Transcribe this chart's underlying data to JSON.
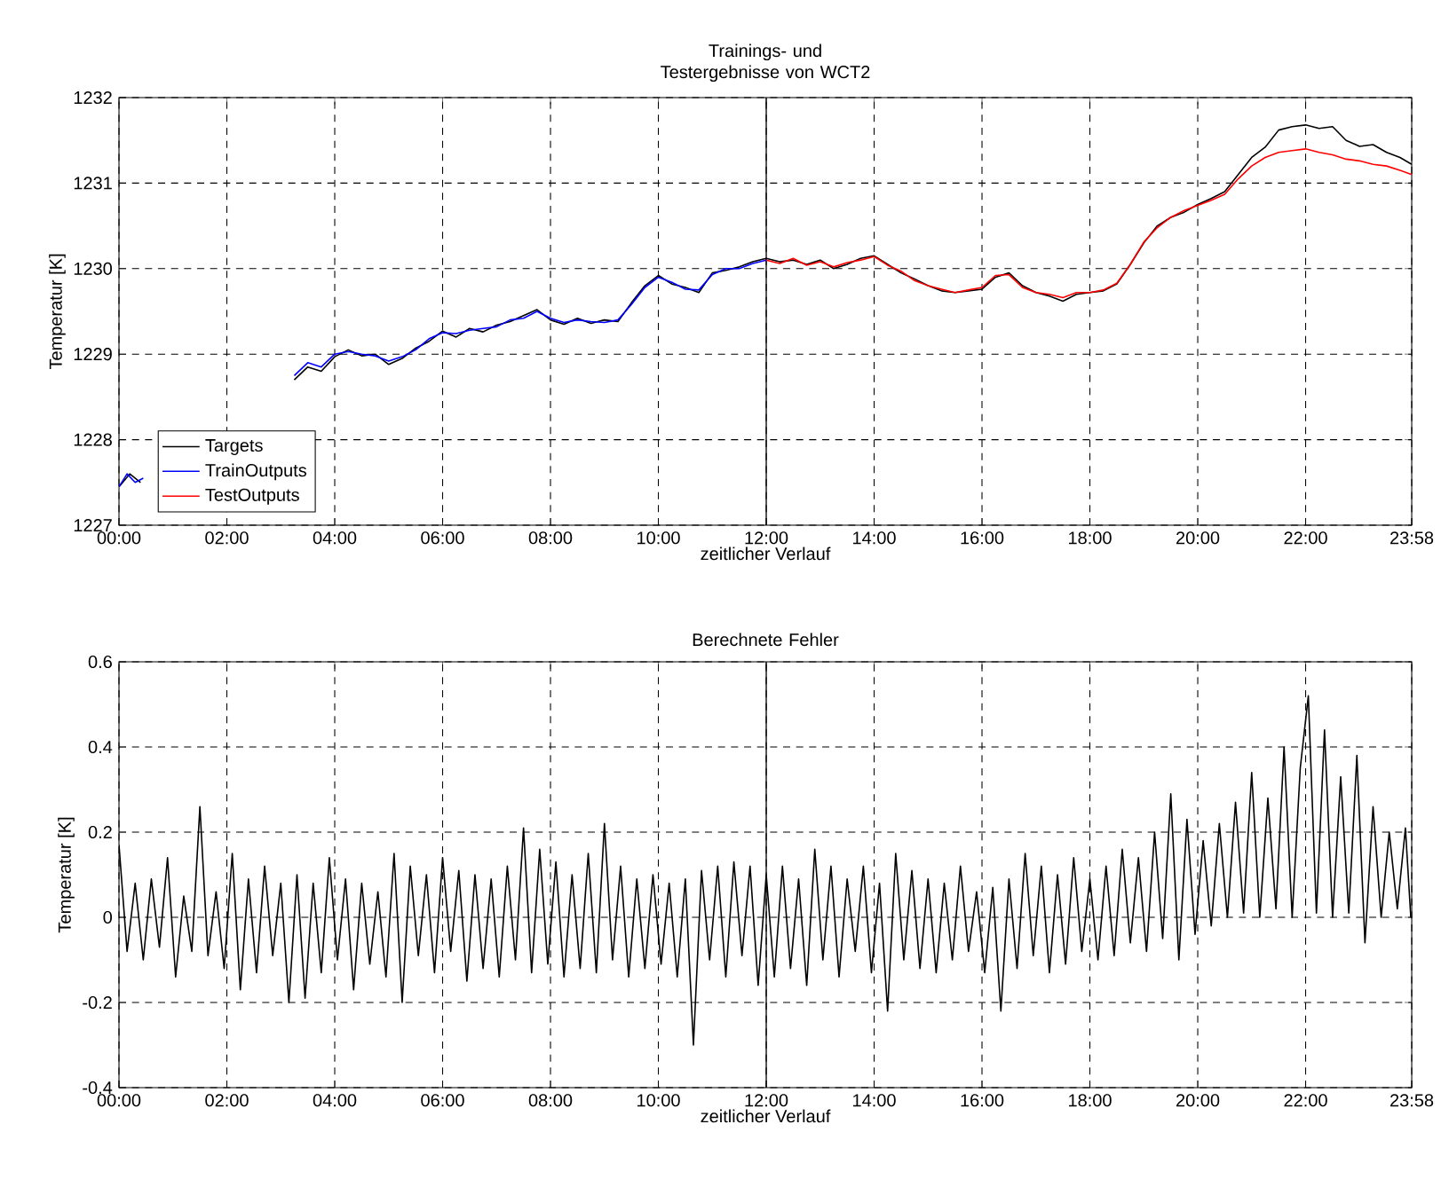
{
  "chart_data": [
    {
      "type": "line",
      "title": "Trainings- und Testergebnisse von WCT2",
      "xlabel": "zeitlicher Verlauf",
      "ylabel": "Temperatur [K]",
      "xlim": [
        0,
        23.967
      ],
      "xticks": [
        {
          "value": 0,
          "label": "00:00"
        },
        {
          "value": 2,
          "label": "02:00"
        },
        {
          "value": 4,
          "label": "04:00"
        },
        {
          "value": 6,
          "label": "06:00"
        },
        {
          "value": 8,
          "label": "08:00"
        },
        {
          "value": 10,
          "label": "10:00"
        },
        {
          "value": 12,
          "label": "12:00"
        },
        {
          "value": 14,
          "label": "14:00"
        },
        {
          "value": 16,
          "label": "16:00"
        },
        {
          "value": 18,
          "label": "18:00"
        },
        {
          "value": 20,
          "label": "20:00"
        },
        {
          "value": 22,
          "label": "22:00"
        },
        {
          "value": 23.967,
          "label": "23:58"
        }
      ],
      "ylim": [
        1227,
        1232
      ],
      "yticks": [
        1227,
        1228,
        1229,
        1230,
        1231,
        1232
      ],
      "grid": true,
      "legend": "bottom left",
      "ref_lines": [
        {
          "axis": "x",
          "value": 12,
          "color": "#000000"
        }
      ],
      "series": [
        {
          "name": "Targets",
          "color": "#000000",
          "x": [
            0,
            0.2,
            0.4,
            1.5,
            3.25,
            3.5,
            3.75,
            4.0,
            4.25,
            4.5,
            4.75,
            5.0,
            5.25,
            5.5,
            5.75,
            6.0,
            6.25,
            6.5,
            6.75,
            7.0,
            7.25,
            7.5,
            7.75,
            8.0,
            8.25,
            8.5,
            8.75,
            9.0,
            9.25,
            9.5,
            9.75,
            10.0,
            10.25,
            10.5,
            10.75,
            11.0,
            11.25,
            11.5,
            11.75,
            12.0,
            12.25,
            12.5,
            12.75,
            13.0,
            13.25,
            13.5,
            13.75,
            14.0,
            14.25,
            14.5,
            14.75,
            15.0,
            15.25,
            15.5,
            15.75,
            16.0,
            16.25,
            16.5,
            16.75,
            17.0,
            17.25,
            17.5,
            17.75,
            18.0,
            18.25,
            18.5,
            18.75,
            19.0,
            19.25,
            19.5,
            19.75,
            20.0,
            20.25,
            20.5,
            20.75,
            21.0,
            21.25,
            21.5,
            21.75,
            22.0,
            22.25,
            22.5,
            22.75,
            23.0,
            23.25,
            23.5,
            23.75,
            23.967
          ],
          "values": [
            1227.45,
            1227.6,
            1227.5,
            null,
            1228.7,
            1228.85,
            1228.8,
            1228.97,
            1229.05,
            1228.98,
            1229.0,
            1228.88,
            1228.95,
            1229.07,
            1229.15,
            1229.27,
            1229.2,
            1229.3,
            1229.26,
            1229.34,
            1229.38,
            1229.45,
            1229.52,
            1229.4,
            1229.35,
            1229.42,
            1229.36,
            1229.4,
            1229.38,
            1229.6,
            1229.8,
            1229.92,
            1229.82,
            1229.78,
            1229.72,
            1229.95,
            1229.98,
            1230.02,
            1230.08,
            1230.12,
            1230.08,
            1230.1,
            1230.05,
            1230.1,
            1230.0,
            1230.05,
            1230.12,
            1230.15,
            1230.05,
            1229.95,
            1229.88,
            1229.8,
            1229.74,
            1229.72,
            1229.74,
            1229.76,
            1229.9,
            1229.95,
            1229.8,
            1229.72,
            1229.68,
            1229.62,
            1229.7,
            1229.72,
            1229.74,
            1229.82,
            1230.05,
            1230.3,
            1230.5,
            1230.6,
            1230.66,
            1230.75,
            1230.82,
            1230.9,
            1231.1,
            1231.3,
            1231.42,
            1231.62,
            1231.66,
            1231.68,
            1231.64,
            1231.66,
            1231.5,
            1231.43,
            1231.45,
            1231.36,
            1231.3,
            1231.22
          ]
        },
        {
          "name": "TrainOutputs",
          "color": "#0000ff",
          "x": [
            0,
            0.15,
            0.3,
            0.45,
            1.5,
            3.25,
            3.5,
            3.75,
            4.0,
            4.25,
            4.5,
            4.75,
            5.0,
            5.25,
            5.5,
            5.75,
            6.0,
            6.25,
            6.5,
            6.75,
            7.0,
            7.25,
            7.5,
            7.75,
            8.0,
            8.25,
            8.5,
            8.75,
            9.0,
            9.25,
            9.5,
            9.75,
            10.0,
            10.25,
            10.5,
            10.75,
            11.0,
            11.25,
            11.5,
            11.75,
            12.0
          ],
          "values": [
            1227.45,
            1227.6,
            1227.5,
            1227.55,
            null,
            1228.75,
            1228.9,
            1228.85,
            1229.0,
            1229.03,
            1229.0,
            1228.98,
            1228.92,
            1228.97,
            1229.05,
            1229.18,
            1229.25,
            1229.24,
            1229.28,
            1229.3,
            1229.32,
            1229.4,
            1229.42,
            1229.5,
            1229.42,
            1229.37,
            1229.4,
            1229.38,
            1229.37,
            1229.4,
            1229.58,
            1229.78,
            1229.9,
            1229.84,
            1229.76,
            1229.75,
            1229.93,
            1230.0,
            1230.0,
            1230.06,
            1230.1
          ]
        },
        {
          "name": "TestOutputs",
          "color": "#ff0000",
          "x": [
            12.0,
            12.25,
            12.5,
            12.75,
            13.0,
            13.25,
            13.5,
            13.75,
            14.0,
            14.25,
            14.5,
            14.75,
            15.0,
            15.25,
            15.5,
            15.75,
            16.0,
            16.25,
            16.5,
            16.75,
            17.0,
            17.25,
            17.5,
            17.75,
            18.0,
            18.25,
            18.5,
            18.75,
            19.0,
            19.25,
            19.5,
            19.75,
            20.0,
            20.25,
            20.5,
            20.75,
            21.0,
            21.25,
            21.5,
            21.75,
            22.0,
            22.25,
            22.5,
            22.75,
            23.0,
            23.25,
            23.5,
            23.75,
            23.967
          ],
          "values": [
            1230.1,
            1230.06,
            1230.12,
            1230.04,
            1230.08,
            1230.02,
            1230.07,
            1230.1,
            1230.14,
            1230.04,
            1229.97,
            1229.86,
            1229.8,
            1229.76,
            1229.72,
            1229.75,
            1229.78,
            1229.92,
            1229.93,
            1229.78,
            1229.72,
            1229.7,
            1229.66,
            1229.72,
            1229.72,
            1229.75,
            1229.83,
            1230.05,
            1230.31,
            1230.48,
            1230.6,
            1230.68,
            1230.74,
            1230.8,
            1230.87,
            1231.05,
            1231.2,
            1231.3,
            1231.36,
            1231.38,
            1231.4,
            1231.36,
            1231.33,
            1231.28,
            1231.26,
            1231.22,
            1231.2,
            1231.15,
            1231.1
          ]
        }
      ]
    },
    {
      "type": "line",
      "title": "Berechnete Fehler",
      "xlabel": "zeitlicher Verlauf",
      "ylabel": "Temperatur [K]",
      "xlim": [
        0,
        23.967
      ],
      "xticks": [
        {
          "value": 0,
          "label": "00:00"
        },
        {
          "value": 2,
          "label": "02:00"
        },
        {
          "value": 4,
          "label": "04:00"
        },
        {
          "value": 6,
          "label": "06:00"
        },
        {
          "value": 8,
          "label": "08:00"
        },
        {
          "value": 10,
          "label": "10:00"
        },
        {
          "value": 12,
          "label": "12:00"
        },
        {
          "value": 14,
          "label": "14:00"
        },
        {
          "value": 16,
          "label": "16:00"
        },
        {
          "value": 18,
          "label": "18:00"
        },
        {
          "value": 20,
          "label": "20:00"
        },
        {
          "value": 22,
          "label": "22:00"
        },
        {
          "value": 23.967,
          "label": "23:58"
        }
      ],
      "ylim": [
        -0.4,
        0.6
      ],
      "yticks": [
        -0.4,
        -0.2,
        0,
        0.2,
        0.4,
        0.6
      ],
      "grid": true,
      "ref_lines": [
        {
          "axis": "x",
          "value": 12,
          "color": "#000000"
        }
      ],
      "series": [
        {
          "color": "#000000",
          "x": [
            0.0,
            0.15,
            0.3,
            0.45,
            0.6,
            0.75,
            0.9,
            1.05,
            1.2,
            1.35,
            1.5,
            1.65,
            1.8,
            1.95,
            2.1,
            2.25,
            2.4,
            2.55,
            2.7,
            2.85,
            3.0,
            3.15,
            3.3,
            3.45,
            3.6,
            3.75,
            3.9,
            4.05,
            4.2,
            4.35,
            4.5,
            4.65,
            4.8,
            4.95,
            5.1,
            5.25,
            5.4,
            5.55,
            5.7,
            5.85,
            6.0,
            6.15,
            6.3,
            6.45,
            6.6,
            6.75,
            6.9,
            7.05,
            7.2,
            7.35,
            7.5,
            7.65,
            7.8,
            7.95,
            8.1,
            8.25,
            8.4,
            8.55,
            8.7,
            8.85,
            9.0,
            9.15,
            9.3,
            9.45,
            9.6,
            9.75,
            9.9,
            10.05,
            10.2,
            10.35,
            10.5,
            10.65,
            10.8,
            10.95,
            11.1,
            11.25,
            11.4,
            11.55,
            11.7,
            11.85,
            12.0,
            12.15,
            12.3,
            12.45,
            12.6,
            12.75,
            12.9,
            13.05,
            13.2,
            13.35,
            13.5,
            13.65,
            13.8,
            13.95,
            14.1,
            14.25,
            14.4,
            14.55,
            14.7,
            14.85,
            15.0,
            15.15,
            15.3,
            15.45,
            15.6,
            15.75,
            15.9,
            16.05,
            16.2,
            16.35,
            16.5,
            16.65,
            16.8,
            16.95,
            17.1,
            17.25,
            17.4,
            17.55,
            17.7,
            17.85,
            18.0,
            18.15,
            18.3,
            18.45,
            18.6,
            18.75,
            18.9,
            19.05,
            19.2,
            19.35,
            19.5,
            19.65,
            19.8,
            19.95,
            20.1,
            20.25,
            20.4,
            20.55,
            20.7,
            20.85,
            21.0,
            21.15,
            21.3,
            21.45,
            21.6,
            21.75,
            21.9,
            22.05,
            22.2,
            22.35,
            22.5,
            22.65,
            22.8,
            22.95,
            23.1,
            23.25,
            23.4,
            23.55,
            23.7,
            23.85,
            23.95
          ],
          "values": [
            0.17,
            -0.08,
            0.08,
            -0.1,
            0.09,
            -0.07,
            0.14,
            -0.14,
            0.05,
            -0.08,
            0.26,
            -0.09,
            0.06,
            -0.12,
            0.15,
            -0.17,
            0.09,
            -0.13,
            0.12,
            -0.09,
            0.08,
            -0.2,
            0.1,
            -0.19,
            0.08,
            -0.13,
            0.14,
            -0.1,
            0.09,
            -0.17,
            0.08,
            -0.11,
            0.06,
            -0.14,
            0.15,
            -0.2,
            0.12,
            -0.09,
            0.1,
            -0.13,
            0.14,
            -0.08,
            0.11,
            -0.15,
            0.1,
            -0.12,
            0.09,
            -0.14,
            0.12,
            -0.1,
            0.21,
            -0.13,
            0.16,
            -0.11,
            0.13,
            -0.14,
            0.1,
            -0.12,
            0.15,
            -0.13,
            0.22,
            -0.1,
            0.12,
            -0.14,
            0.09,
            -0.12,
            0.1,
            -0.11,
            0.08,
            -0.14,
            0.09,
            -0.3,
            0.11,
            -0.1,
            0.12,
            -0.14,
            0.13,
            -0.09,
            0.12,
            -0.16,
            0.1,
            -0.14,
            0.12,
            -0.12,
            0.09,
            -0.16,
            0.16,
            -0.1,
            0.12,
            -0.14,
            0.09,
            -0.08,
            0.12,
            -0.13,
            0.08,
            -0.22,
            0.15,
            -0.1,
            0.11,
            -0.12,
            0.09,
            -0.13,
            0.08,
            -0.1,
            0.12,
            -0.08,
            0.06,
            -0.13,
            0.07,
            -0.22,
            0.09,
            -0.12,
            0.15,
            -0.09,
            0.12,
            -0.13,
            0.1,
            -0.11,
            0.14,
            -0.08,
            0.09,
            -0.1,
            0.12,
            -0.09,
            0.16,
            -0.06,
            0.14,
            -0.08,
            0.2,
            -0.05,
            0.29,
            -0.1,
            0.23,
            -0.04,
            0.18,
            -0.02,
            0.22,
            0.0,
            0.27,
            0.01,
            0.34,
            0.0,
            0.28,
            0.02,
            0.4,
            0.0,
            0.35,
            0.52,
            0.01,
            0.44,
            0.0,
            0.33,
            0.01,
            0.38,
            -0.06,
            0.26,
            0.0,
            0.2,
            0.02,
            0.21,
            0.0
          ]
        }
      ]
    }
  ]
}
